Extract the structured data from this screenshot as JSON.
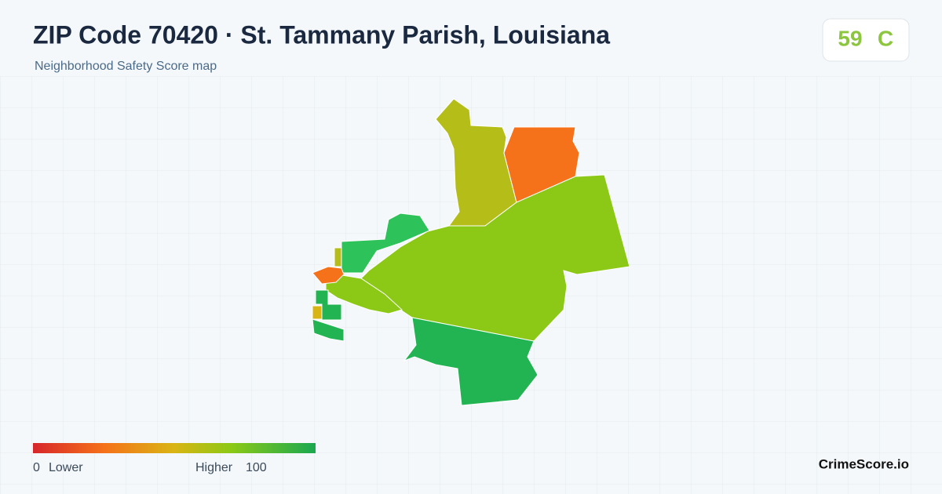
{
  "header": {
    "title": "ZIP Code 70420 · St. Tammany Parish, Louisiana",
    "subtitle": "Neighborhood Safety Score map"
  },
  "score": {
    "value": 59,
    "grade": "C"
  },
  "legend": {
    "min": 0,
    "min_label": "Lower",
    "max_label": "Higher",
    "max": 100
  },
  "brand": "CrimeScore.io"
}
